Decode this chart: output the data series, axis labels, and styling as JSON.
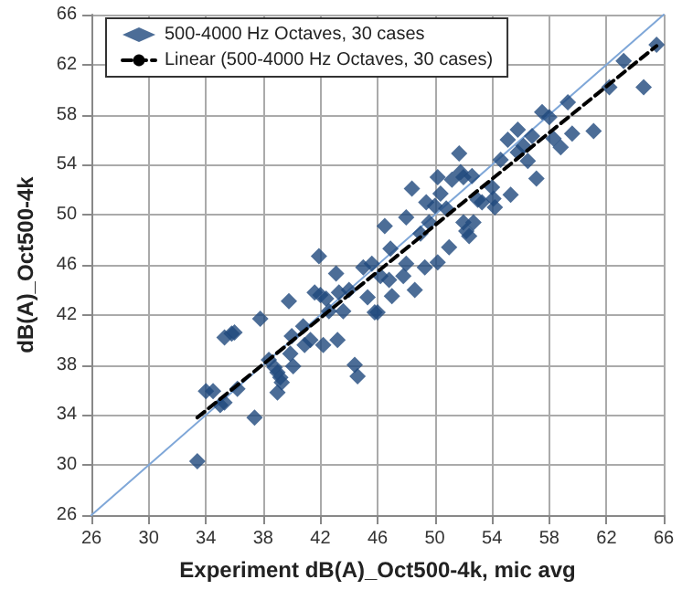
{
  "chart_data": {
    "type": "scatter",
    "xlabel": "Experiment dB(A)_Oct500-4k, mic avg",
    "ylabel": "dB(A)_Oct500-4k",
    "xlim": [
      26,
      66
    ],
    "ylim": [
      26,
      66
    ],
    "xticks": [
      26,
      30,
      34,
      38,
      42,
      46,
      50,
      54,
      58,
      62,
      66
    ],
    "yticks": [
      26,
      30,
      34,
      38,
      42,
      46,
      50,
      54,
      58,
      62,
      66
    ],
    "grid": true,
    "legend": "top left",
    "marker": "diamond",
    "series": [
      {
        "name": "500-4000 Hz Octaves, 30 cases",
        "color": "#1f497d",
        "x": [
          33.4,
          34.0,
          34.5,
          35.0,
          35.3,
          35.3,
          35.8,
          36.0,
          36.2,
          37.4,
          37.8,
          38.4,
          38.8,
          39.0,
          39.0,
          39.3,
          39.2,
          39.8,
          40.0,
          39.9,
          40.1,
          40.8,
          40.9,
          41.3,
          41.6,
          41.9,
          42.0,
          42.2,
          42.4,
          42.6,
          43.1,
          43.2,
          43.3,
          43.6,
          44.0,
          44.4,
          44.6,
          45.0,
          45.3,
          45.6,
          45.8,
          46.0,
          46.2,
          46.5,
          46.8,
          46.9,
          47.0,
          47.8,
          48.0,
          48.0,
          48.4,
          48.6,
          49.0,
          49.3,
          49.4,
          49.6,
          50.0,
          50.2,
          50.2,
          50.4,
          50.8,
          51.0,
          51.2,
          51.7,
          51.8,
          52.0,
          52.0,
          52.2,
          52.4,
          52.6,
          52.7,
          53.0,
          53.3,
          54.0,
          54.1,
          54.2,
          54.6,
          55.1,
          55.3,
          55.8,
          55.8,
          56.2,
          56.5,
          56.8,
          57.1,
          57.5,
          58.0,
          58.3,
          58.8,
          59.3,
          59.6,
          61.1,
          62.2,
          63.2,
          64.6,
          65.5
        ],
        "values": [
          30.3,
          35.9,
          35.9,
          34.8,
          35.0,
          40.2,
          40.5,
          40.6,
          36.1,
          33.8,
          41.7,
          38.4,
          37.8,
          37.4,
          35.8,
          36.6,
          37.0,
          43.1,
          40.3,
          38.9,
          37.9,
          41.1,
          39.6,
          40.0,
          43.8,
          46.7,
          43.6,
          39.6,
          43.3,
          42.3,
          45.3,
          40.0,
          43.8,
          42.3,
          44.0,
          38.0,
          37.1,
          45.8,
          43.4,
          46.1,
          42.2,
          42.2,
          45.1,
          49.1,
          44.8,
          47.3,
          43.5,
          45.1,
          49.8,
          46.1,
          52.1,
          44.0,
          48.5,
          45.8,
          51.0,
          49.4,
          50.7,
          46.2,
          53.0,
          51.7,
          50.5,
          47.4,
          52.8,
          54.9,
          53.4,
          49.4,
          53.0,
          48.7,
          48.3,
          53.1,
          49.4,
          51.2,
          51.0,
          52.2,
          51.3,
          50.6,
          54.4,
          56.0,
          51.6,
          56.8,
          55.0,
          55.5,
          54.3,
          56.3,
          52.9,
          58.2,
          57.8,
          56.1,
          55.4,
          59.0,
          56.5,
          56.7,
          60.2,
          62.3,
          60.2,
          63.6
        ]
      },
      {
        "name": "Linear (500-4000 Hz Octaves, 30 cases)",
        "type": "line",
        "color": "#000000",
        "line_style": "dashed",
        "marker": "none",
        "x": [
          33.4,
          65.5
        ],
        "values": [
          33.8,
          63.5
        ]
      },
      {
        "type": "line",
        "color": "#7fa7d8",
        "line_style": "solid",
        "marker": "none",
        "x": [
          26,
          66
        ],
        "values": [
          26,
          66
        ]
      }
    ]
  }
}
